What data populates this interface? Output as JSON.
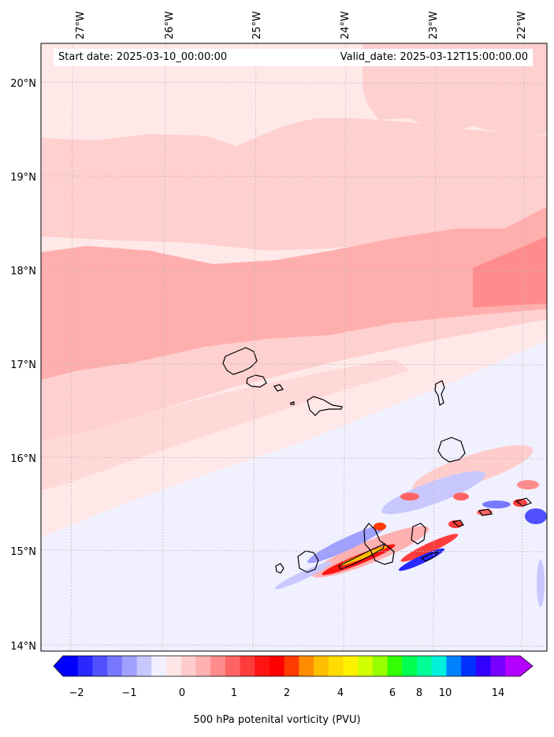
{
  "header": {
    "start_label": "Start date: 2025-03-10_00:00:00",
    "valid_label": "Valid_date: 2025-03-12T15:00:00.00"
  },
  "map": {
    "lon_ticks": [
      "27°W",
      "26°W",
      "25°W",
      "24°W",
      "23°W",
      "22°W"
    ],
    "lat_ticks": [
      "20°N",
      "19°N",
      "18°N",
      "17°N",
      "16°N",
      "15°N",
      "14°N"
    ],
    "lon_range": [
      -27.35,
      -21.6
    ],
    "lat_range": [
      13.95,
      20.42
    ]
  },
  "colorbar": {
    "label": "500 hPa potenital vorticity (PVU)",
    "ticks": [
      "−2",
      "−1",
      "0",
      "1",
      "2",
      "4",
      "6",
      "8",
      "10",
      "14"
    ],
    "colors": [
      "#0000ff",
      "#2828ff",
      "#5050ff",
      "#7878ff",
      "#a0a0ff",
      "#c8c8ff",
      "#f0f0ff",
      "#ffe6e6",
      "#ffcccc",
      "#ffb0b0",
      "#ff8c8c",
      "#ff6464",
      "#ff3c3c",
      "#ff1414",
      "#ff0000",
      "#ff3c00",
      "#ff8c00",
      "#ffbe00",
      "#ffdc00",
      "#fff000",
      "#d2ff00",
      "#96ff00",
      "#32ff00",
      "#00ff50",
      "#00ff96",
      "#00f0dc",
      "#0082ff",
      "#0032ff",
      "#3200ff",
      "#7800ff",
      "#b400ff"
    ]
  }
}
